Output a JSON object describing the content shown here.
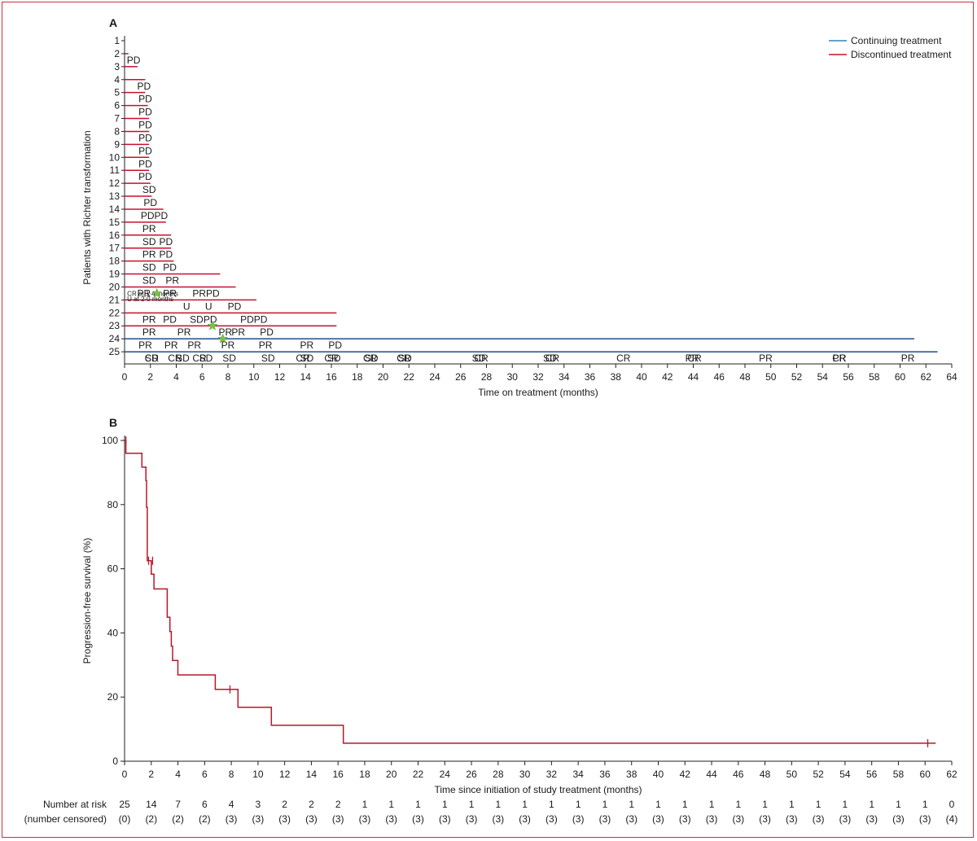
{
  "panel_a": {
    "label": "A",
    "legend": [
      {
        "name": "Continuing treatment",
        "color": "#2f86b6"
      },
      {
        "name": "Discontinued treatment",
        "color": "#c8102e"
      }
    ]
  },
  "panel_b": {
    "label": "B",
    "risk_title": "Number at risk",
    "censored_title": "(number censored)",
    "risk": [
      "25",
      "14",
      "7",
      "6",
      "4",
      "3",
      "2",
      "2",
      "2",
      "1",
      "1",
      "1",
      "1",
      "1",
      "1",
      "1",
      "1",
      "1",
      "1",
      "1",
      "1",
      "1",
      "1",
      "1",
      "1",
      "1",
      "1",
      "1",
      "1",
      "1",
      "1",
      "0"
    ],
    "censored": [
      "(0)",
      "(2)",
      "(2)",
      "(2)",
      "(3)",
      "(3)",
      "(3)",
      "(3)",
      "(3)",
      "(3)",
      "(3)",
      "(3)",
      "(3)",
      "(3)",
      "(3)",
      "(3)",
      "(3)",
      "(3)",
      "(3)",
      "(3)",
      "(3)",
      "(3)",
      "(3)",
      "(3)",
      "(3)",
      "(3)",
      "(3)",
      "(3)",
      "(3)",
      "(3)",
      "(3)",
      "(4)"
    ]
  },
  "chart_data": [
    {
      "type": "bar",
      "orientation": "horizontal",
      "title": "",
      "xlabel": "Time on treatment (months)",
      "ylabel": "Patients with Richter transformation",
      "xlim": [
        0,
        64
      ],
      "xticks": [
        0,
        2,
        4,
        6,
        8,
        10,
        12,
        14,
        16,
        18,
        20,
        22,
        24,
        26,
        28,
        30,
        32,
        34,
        36,
        38,
        40,
        42,
        44,
        46,
        48,
        50,
        52,
        54,
        56,
        58,
        60,
        62,
        64
      ],
      "categories": [
        "1",
        "2",
        "3",
        "4",
        "5",
        "6",
        "7",
        "8",
        "9",
        "10",
        "11",
        "12",
        "13",
        "14",
        "15",
        "16",
        "17",
        "18",
        "19",
        "20",
        "21",
        "22",
        "23",
        "24",
        "25"
      ],
      "patients": [
        {
          "id": "1",
          "duration": 0,
          "status": "discontinued",
          "labels": []
        },
        {
          "id": "2",
          "duration": 0.3,
          "status": "discontinued",
          "labels": [
            {
              "t": "PD",
              "x": 0.7
            }
          ]
        },
        {
          "id": "3",
          "duration": 1.0,
          "status": "discontinued",
          "labels": []
        },
        {
          "id": "4",
          "duration": 1.6,
          "status": "discontinued",
          "labels": [
            {
              "t": "PD",
              "x": 1.5
            }
          ]
        },
        {
          "id": "5",
          "duration": 1.6,
          "status": "discontinued",
          "labels": [
            {
              "t": "PD",
              "x": 1.6
            }
          ]
        },
        {
          "id": "6",
          "duration": 1.8,
          "status": "discontinued",
          "labels": [
            {
              "t": "PD",
              "x": 1.6
            }
          ]
        },
        {
          "id": "7",
          "duration": 1.9,
          "status": "discontinued",
          "labels": [
            {
              "t": "PD",
              "x": 1.6
            }
          ]
        },
        {
          "id": "8",
          "duration": 1.9,
          "status": "discontinued",
          "labels": [
            {
              "t": "PD",
              "x": 1.6
            }
          ]
        },
        {
          "id": "9",
          "duration": 1.9,
          "status": "discontinued",
          "labels": [
            {
              "t": "PD",
              "x": 1.6
            }
          ]
        },
        {
          "id": "10",
          "duration": 1.9,
          "status": "discontinued",
          "labels": [
            {
              "t": "PD",
              "x": 1.6
            }
          ]
        },
        {
          "id": "11",
          "duration": 1.9,
          "status": "discontinued",
          "labels": [
            {
              "t": "PD",
              "x": 1.6
            }
          ]
        },
        {
          "id": "12",
          "duration": 2.0,
          "status": "discontinued",
          "labels": [
            {
              "t": "SD",
              "x": 1.9
            }
          ]
        },
        {
          "id": "13",
          "duration": 2.1,
          "status": "discontinued",
          "labels": [
            {
              "t": "PD",
              "x": 2.0
            }
          ]
        },
        {
          "id": "14",
          "duration": 3.0,
          "status": "discontinued",
          "labels": [
            {
              "t": "PDPD",
              "x": 2.3
            }
          ]
        },
        {
          "id": "15",
          "duration": 3.2,
          "status": "discontinued",
          "labels": [
            {
              "t": "PR",
              "x": 1.9
            }
          ]
        },
        {
          "id": "16",
          "duration": 3.6,
          "status": "discontinued",
          "labels": [
            {
              "t": "SD",
              "x": 1.9
            },
            {
              "t": "PD",
              "x": 3.2
            }
          ]
        },
        {
          "id": "17",
          "duration": 3.6,
          "status": "discontinued",
          "labels": [
            {
              "t": "PR",
              "x": 1.9
            },
            {
              "t": "PD",
              "x": 3.2
            }
          ]
        },
        {
          "id": "18",
          "duration": 3.8,
          "status": "discontinued",
          "labels": [
            {
              "t": "SD",
              "x": 1.9
            },
            {
              "t": "PD",
              "x": 3.5
            }
          ]
        },
        {
          "id": "19",
          "duration": 7.4,
          "status": "discontinued",
          "labels": [
            {
              "t": "SD",
              "x": 1.9
            },
            {
              "t": "PR",
              "x": 3.7
            }
          ]
        },
        {
          "id": "20",
          "duration": 8.6,
          "status": "discontinued",
          "labels": [
            {
              "t": "PR",
              "x": 1.5
            },
            {
              "t": "PR",
              "x": 3.5
            },
            {
              "t": "PRPD",
              "x": 6.3
            }
          ]
        },
        {
          "id": "21",
          "duration": 10.2,
          "status": "discontinued",
          "labels": [
            {
              "t": "U",
              "x": 4.8
            },
            {
              "t": "U",
              "x": 6.5
            },
            {
              "t": "PD",
              "x": 8.5
            }
          ]
        },
        {
          "id": "22",
          "duration": 16.4,
          "status": "discontinued",
          "labels": [
            {
              "t": "PR",
              "x": 1.9
            },
            {
              "t": "PD",
              "x": 3.5
            },
            {
              "t": "SDPD",
              "x": 6.1
            },
            {
              "t": "PDPD",
              "x": 10.0
            }
          ]
        },
        {
          "id": "23",
          "duration": 16.4,
          "status": "discontinued",
          "labels": [
            {
              "t": "PR",
              "x": 1.9
            },
            {
              "t": "PR",
              "x": 4.6
            },
            {
              "t": "PR",
              "x": 7.8
            },
            {
              "t": "PR",
              "x": 8.8
            },
            {
              "t": "PD",
              "x": 11.0
            }
          ]
        },
        {
          "id": "24",
          "duration": 61.1,
          "status": "continuing",
          "labels": [
            {
              "t": "PR",
              "x": 1.6
            },
            {
              "t": "PR",
              "x": 3.6
            },
            {
              "t": "PR",
              "x": 5.4
            },
            {
              "t": "PR",
              "x": 8.0
            },
            {
              "t": "PR",
              "x": 10.9
            },
            {
              "t": "PR",
              "x": 14.1
            },
            {
              "t": "PD",
              "x": 16.3
            }
          ]
        },
        {
          "id": "25",
          "duration": 62.9,
          "status": "continuing",
          "labels": [
            {
              "t": "CR",
              "x": 2.1
            },
            {
              "t": "CR",
              "x": 3.9
            },
            {
              "t": "CR",
              "x": 5.8
            },
            {
              "t": "CR",
              "x": 13.8
            },
            {
              "t": "CR",
              "x": 16.0
            },
            {
              "t": "CR",
              "x": 19.0
            },
            {
              "t": "CR",
              "x": 21.6
            },
            {
              "t": "CR",
              "x": 27.6
            },
            {
              "t": "CR",
              "x": 33.1
            },
            {
              "t": "CR",
              "x": 38.6
            },
            {
              "t": "CR",
              "x": 44.1
            },
            {
              "t": "CR",
              "x": 55.3
            }
          ]
        }
      ],
      "row26_labels": [
        {
          "t": "SD",
          "x": 2.1
        },
        {
          "t": "SD",
          "x": 4.5
        },
        {
          "t": "SD",
          "x": 6.3
        },
        {
          "t": "SD",
          "x": 8.1
        },
        {
          "t": "SD",
          "x": 11.1
        },
        {
          "t": "SD",
          "x": 14.1
        },
        {
          "t": "SD",
          "x": 16.2
        },
        {
          "t": "SD",
          "x": 19.1
        },
        {
          "t": "SD",
          "x": 21.7
        },
        {
          "t": "SD",
          "x": 27.4
        },
        {
          "t": "SD",
          "x": 32.9
        },
        {
          "t": "PR",
          "x": 43.9
        },
        {
          "t": "PR",
          "x": 49.6
        },
        {
          "t": "PR",
          "x": 55.3
        },
        {
          "t": "PR",
          "x": 60.6
        }
      ],
      "annotations": [
        {
          "text": "CR at 1·4 months",
          "x": 0.2,
          "row": 20.5
        },
        {
          "text": "U at 2·0 months",
          "x": 0.2,
          "row": 20.9
        }
      ],
      "stars": [
        {
          "x": 2.5,
          "row": 20.5
        },
        {
          "x": 6.8,
          "row": 23
        },
        {
          "x": 7.6,
          "row": 24
        }
      ]
    },
    {
      "type": "line",
      "title": "",
      "xlabel": "Time since initiation of study treatment (months)",
      "ylabel": "Progression-free survival (%)",
      "xlim": [
        0,
        62
      ],
      "ylim": [
        0,
        100
      ],
      "xticks": [
        0,
        2,
        4,
        6,
        8,
        10,
        12,
        14,
        16,
        18,
        20,
        22,
        24,
        26,
        28,
        30,
        32,
        34,
        36,
        38,
        40,
        42,
        44,
        46,
        48,
        50,
        52,
        54,
        56,
        58,
        60,
        62
      ],
      "yticks": [
        0,
        20,
        40,
        60,
        80,
        100
      ],
      "series": [
        {
          "color": "#b5182b",
          "x": [
            0,
            0.1,
            1.3,
            1.6,
            1.65,
            1.7,
            2.0,
            2.2,
            3.2,
            3.4,
            3.5,
            3.6,
            4.0,
            6.8,
            8.5,
            11.0,
            16.4,
            60.8
          ],
          "y": [
            100,
            96,
            91.7,
            87.5,
            79.2,
            62.5,
            58.3,
            53.7,
            44.9,
            40.4,
            35.9,
            31.4,
            26.9,
            22.4,
            16.8,
            11.2,
            5.6,
            5.6
          ]
        }
      ],
      "censor_marks": [
        {
          "x": 0.1,
          "y": 100
        },
        {
          "x": 1.8,
          "y": 62.5
        },
        {
          "x": 2.1,
          "y": 62.5
        },
        {
          "x": 7.9,
          "y": 22.4
        },
        {
          "x": 60.2,
          "y": 5.6
        }
      ]
    }
  ]
}
